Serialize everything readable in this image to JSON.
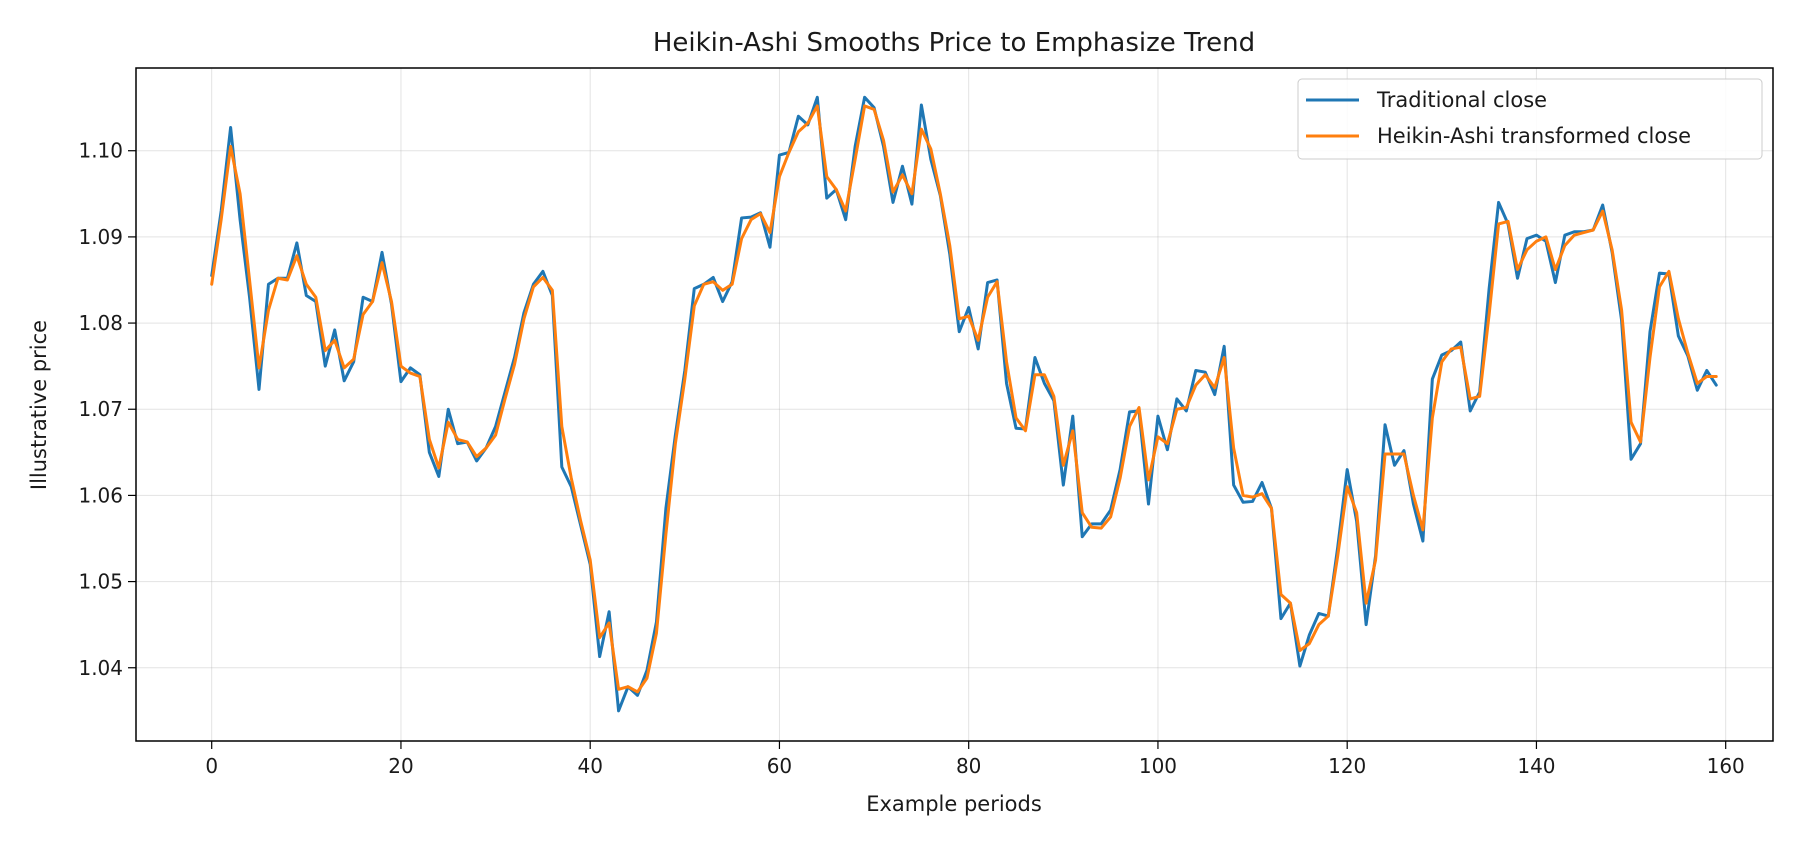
{
  "chart_data": {
    "type": "line",
    "title": "Heikin-Ashi Smooths Price to Emphasize Trend",
    "xlabel": "Example periods",
    "ylabel": "Illustrative price",
    "xlim": [
      -8,
      165
    ],
    "ylim": [
      1.0315,
      1.1096
    ],
    "xticks": [
      0,
      20,
      40,
      60,
      80,
      100,
      120,
      140,
      160
    ],
    "xtick_labels": [
      "0",
      "20",
      "40",
      "60",
      "80",
      "100",
      "120",
      "140",
      "160"
    ],
    "yticks": [
      1.04,
      1.05,
      1.06,
      1.07,
      1.08,
      1.09,
      1.1
    ],
    "ytick_labels": [
      "1.04",
      "1.05",
      "1.06",
      "1.07",
      "1.08",
      "1.09",
      "1.10"
    ],
    "grid": true,
    "legend_position": "top-right",
    "series": [
      {
        "name": "Traditional close",
        "color": "#1f77b4",
        "values": [
          1.0855,
          1.093,
          1.1027,
          1.092,
          1.083,
          1.0723,
          1.0845,
          1.0852,
          1.0852,
          1.0893,
          1.0832,
          1.0825,
          1.075,
          1.0792,
          1.0733,
          1.0755,
          1.083,
          1.0825,
          1.0882,
          1.0822,
          1.0732,
          1.0748,
          1.074,
          1.065,
          1.0622,
          1.07,
          1.066,
          1.0662,
          1.064,
          1.0655,
          1.068,
          1.072,
          1.076,
          1.0812,
          1.0845,
          1.086,
          1.0832,
          1.0633,
          1.061,
          1.0565,
          1.052,
          1.0413,
          1.0465,
          1.035,
          1.0378,
          1.0368,
          1.0397,
          1.0453,
          1.0585,
          1.067,
          1.0745,
          1.084,
          1.0845,
          1.0853,
          1.0825,
          1.0848,
          1.0922,
          1.0923,
          1.0928,
          1.0888,
          1.0995,
          1.0998,
          1.104,
          1.103,
          1.1062,
          1.0945,
          1.0955,
          1.092,
          1.1005,
          1.1062,
          1.105,
          1.1005,
          1.094,
          1.0982,
          1.0938,
          1.1053,
          1.099,
          1.0948,
          1.088,
          1.079,
          1.0818,
          1.077,
          1.0847,
          1.085,
          1.073,
          1.0678,
          1.0677,
          1.076,
          1.073,
          1.071,
          1.0612,
          1.0692,
          1.0552,
          1.0567,
          1.0567,
          1.0583,
          1.063,
          1.0697,
          1.0698,
          1.059,
          1.0692,
          1.0653,
          1.0712,
          1.0698,
          1.0745,
          1.0743,
          1.0717,
          1.0773,
          1.0612,
          1.0592,
          1.0593,
          1.0615,
          1.0585,
          1.0457,
          1.0475,
          1.0402,
          1.0438,
          1.0463,
          1.046,
          1.054,
          1.063,
          1.057,
          1.045,
          1.053,
          1.0682,
          1.0635,
          1.0652,
          1.059,
          1.0547,
          1.0735,
          1.0763,
          1.0768,
          1.0778,
          1.0698,
          1.072,
          1.084,
          1.094,
          1.0915,
          1.0852,
          1.0898,
          1.0902,
          1.0895,
          1.0847,
          1.0902,
          1.0906,
          1.0906,
          1.0908,
          1.0937,
          1.0882,
          1.0803,
          1.0642,
          1.066,
          1.079,
          1.0858,
          1.0857,
          1.0785,
          1.0762,
          1.0722,
          1.0745,
          1.0728
        ]
      },
      {
        "name": "Heikin-Ashi transformed close",
        "color": "#ff7f0e",
        "values": [
          1.0845,
          1.092,
          1.1005,
          1.095,
          1.085,
          1.0748,
          1.0815,
          1.0852,
          1.085,
          1.0878,
          1.0845,
          1.083,
          1.0768,
          1.078,
          1.0748,
          1.0758,
          1.081,
          1.0825,
          1.087,
          1.0825,
          1.075,
          1.0742,
          1.0738,
          1.0665,
          1.0632,
          1.0685,
          1.0665,
          1.0662,
          1.0645,
          1.0655,
          1.067,
          1.0712,
          1.0752,
          1.0805,
          1.0842,
          1.0853,
          1.0838,
          1.068,
          1.062,
          1.057,
          1.0525,
          1.0435,
          1.0452,
          1.0375,
          1.0378,
          1.0372,
          1.0388,
          1.044,
          1.0555,
          1.066,
          1.0735,
          1.082,
          1.0845,
          1.0848,
          1.0838,
          1.0845,
          1.0898,
          1.092,
          1.0927,
          1.0905,
          1.097,
          1.0998,
          1.1022,
          1.1032,
          1.1052,
          1.097,
          1.0955,
          1.093,
          1.099,
          1.1052,
          1.1048,
          1.1012,
          1.0952,
          1.0972,
          1.095,
          1.1025,
          1.1002,
          1.095,
          1.089,
          1.0805,
          1.0808,
          1.078,
          1.083,
          1.0848,
          1.0755,
          1.069,
          1.0675,
          1.074,
          1.074,
          1.0715,
          1.0635,
          1.0675,
          1.058,
          1.0563,
          1.0562,
          1.0575,
          1.062,
          1.068,
          1.0702,
          1.0618,
          1.0668,
          1.066,
          1.07,
          1.0702,
          1.0728,
          1.074,
          1.0725,
          1.076,
          1.0655,
          1.06,
          1.0598,
          1.0602,
          1.0585,
          1.0485,
          1.0475,
          1.042,
          1.0428,
          1.045,
          1.046,
          1.053,
          1.061,
          1.058,
          1.0475,
          1.0525,
          1.0648,
          1.0648,
          1.0648,
          1.06,
          1.056,
          1.069,
          1.0755,
          1.077,
          1.0772,
          1.0712,
          1.0715,
          1.081,
          1.0915,
          1.0918,
          1.0862,
          1.0885,
          1.0895,
          1.09,
          1.0862,
          1.089,
          1.0902,
          1.0905,
          1.0908,
          1.093,
          1.0885,
          1.0815,
          1.0685,
          1.0662,
          1.076,
          1.0842,
          1.086,
          1.0805,
          1.0765,
          1.073,
          1.0738,
          1.0738
        ]
      }
    ]
  }
}
